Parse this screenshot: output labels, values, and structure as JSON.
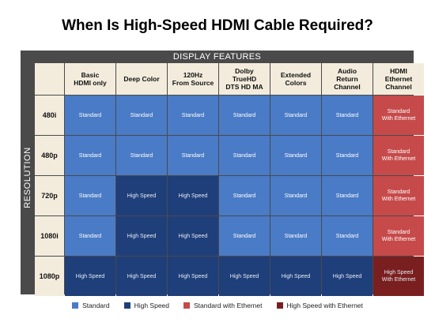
{
  "title": "When Is High-Speed HDMI Cable Required?",
  "banner": "DISPLAY FEATURES",
  "side_label": "RESOLUTION",
  "colors": {
    "standard": "#4a7bc6",
    "high_speed": "#1f3f7a",
    "standard_ethernet": "#c64a4a",
    "high_speed_ethernet": "#7a1f1f",
    "header_bg": "#f3ecdd",
    "frame": "#4a4a4a"
  },
  "columns": [
    "Basic\nHDMI only",
    "Deep Color",
    "120Hz\nFrom Source",
    "Dolby\nTrueHD\nDTS HD MA",
    "Extended\nColors",
    "Audio\nReturn\nChannel",
    "HDMI\nEthernet\nChannel"
  ],
  "rows": [
    {
      "label": "480i",
      "cells": [
        "standard",
        "standard",
        "standard",
        "standard",
        "standard",
        "standard",
        "standard_ethernet"
      ]
    },
    {
      "label": "480p",
      "cells": [
        "standard",
        "standard",
        "standard",
        "standard",
        "standard",
        "standard",
        "standard_ethernet"
      ]
    },
    {
      "label": "720p",
      "cells": [
        "standard",
        "high_speed",
        "high_speed",
        "standard",
        "standard",
        "standard",
        "standard_ethernet"
      ]
    },
    {
      "label": "1080i",
      "cells": [
        "standard",
        "high_speed",
        "high_speed",
        "standard",
        "standard",
        "standard",
        "standard_ethernet"
      ]
    },
    {
      "label": "1080p",
      "cells": [
        "high_speed",
        "high_speed",
        "high_speed",
        "high_speed",
        "high_speed",
        "high_speed",
        "high_speed_ethernet"
      ]
    }
  ],
  "cell_text": {
    "standard": "Standard",
    "high_speed": "High Speed",
    "standard_ethernet": "Standard\nWith Ethernet",
    "high_speed_ethernet": "High Speed\nWith Ethernet"
  },
  "legend": [
    {
      "key": "standard",
      "label": "Standard"
    },
    {
      "key": "high_speed",
      "label": "High Speed"
    },
    {
      "key": "standard_ethernet",
      "label": "Standard with Ethernet"
    },
    {
      "key": "high_speed_ethernet",
      "label": "High Speed with Ethernet"
    }
  ]
}
